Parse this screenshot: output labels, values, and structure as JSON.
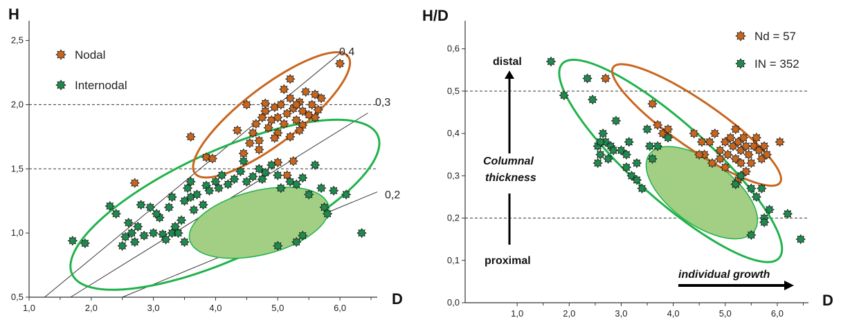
{
  "colors": {
    "nodal": "#c8661e",
    "internodal": "#1e8a4e",
    "ellipse_green": "#1fb24a",
    "ellipse_orange": "#c8661e",
    "fill_green": "#a3cf84"
  },
  "chart_data": [
    {
      "type": "scatter",
      "xlabel": "D",
      "ylabel": "H",
      "xlim": [
        1.0,
        6.6
      ],
      "ylim": [
        0.5,
        2.6
      ],
      "x_ticks": [
        "1,0",
        "2,0",
        "3,0",
        "4,0",
        "5,0",
        "6,0"
      ],
      "x_tick_values": [
        1,
        2,
        3,
        4,
        5,
        6
      ],
      "y_ticks": [
        "0,5",
        "1,0",
        "1,5",
        "2,0",
        "2,5"
      ],
      "y_tick_values": [
        0.5,
        1.0,
        1.5,
        2.0,
        2.5
      ],
      "dashed_lines": [
        1.5,
        2.0
      ],
      "legend": [
        {
          "name": "Nodal",
          "color": "#c8661e"
        },
        {
          "name": "Internodal",
          "color": "#1e8a4e"
        }
      ],
      "ratio_lines": [
        {
          "label": "0,4",
          "slope": 0.4
        },
        {
          "label": "0,3",
          "slope": 0.3
        },
        {
          "label": "0,2",
          "slope": 0.2
        }
      ],
      "series": [
        {
          "name": "Nodal",
          "points": [
            [
              2.7,
              1.39
            ],
            [
              3.6,
              1.75
            ],
            [
              3.85,
              1.59
            ],
            [
              3.95,
              1.58
            ],
            [
              4.35,
              1.8
            ],
            [
              4.45,
              1.62
            ],
            [
              4.55,
              1.7
            ],
            [
              4.6,
              1.78
            ],
            [
              4.65,
              1.85
            ],
            [
              4.7,
              1.72
            ],
            [
              4.75,
              1.9
            ],
            [
              4.8,
              1.95
            ],
            [
              4.85,
              1.82
            ],
            [
              4.9,
              1.88
            ],
            [
              4.95,
              1.98
            ],
            [
              5.0,
              1.9
            ],
            [
              5.05,
              2.0
            ],
            [
              5.1,
              1.85
            ],
            [
              5.15,
              1.93
            ],
            [
              5.2,
              2.05
            ],
            [
              5.25,
              1.97
            ],
            [
              5.3,
              1.88
            ],
            [
              5.35,
              2.02
            ],
            [
              5.4,
              1.95
            ],
            [
              5.45,
              2.1
            ],
            [
              5.5,
              1.92
            ],
            [
              5.55,
              2.0
            ],
            [
              5.6,
              2.08
            ],
            [
              5.65,
              1.96
            ],
            [
              5.7,
              2.05
            ],
            [
              4.8,
              2.01
            ],
            [
              5.0,
              1.78
            ],
            [
              5.2,
              1.75
            ],
            [
              5.1,
              2.12
            ],
            [
              5.3,
              2.0
            ],
            [
              5.4,
              1.84
            ],
            [
              5.6,
              1.9
            ],
            [
              4.95,
              1.74
            ],
            [
              5.25,
              1.56
            ],
            [
              5.15,
              1.45
            ],
            [
              5.0,
              1.55
            ],
            [
              5.2,
              2.2
            ],
            [
              6.0,
              2.32
            ],
            [
              4.5,
              2.0
            ],
            [
              5.35,
              1.8
            ],
            [
              4.7,
              1.65
            ]
          ]
        },
        {
          "name": "Internodal",
          "points": [
            [
              1.7,
              0.94
            ],
            [
              1.9,
              0.92
            ],
            [
              2.3,
              1.21
            ],
            [
              2.4,
              1.15
            ],
            [
              2.5,
              0.9
            ],
            [
              2.55,
              0.97
            ],
            [
              2.6,
              1.08
            ],
            [
              2.65,
              1.0
            ],
            [
              2.7,
              0.93
            ],
            [
              2.75,
              1.05
            ],
            [
              2.8,
              1.22
            ],
            [
              2.85,
              0.98
            ],
            [
              3.0,
              1.0
            ],
            [
              3.1,
              1.12
            ],
            [
              3.15,
              0.99
            ],
            [
              3.2,
              0.95
            ],
            [
              3.3,
              1.0
            ],
            [
              3.35,
              1.05
            ],
            [
              3.4,
              1.0
            ],
            [
              3.45,
              1.1
            ],
            [
              3.5,
              1.25
            ],
            [
              3.55,
              1.35
            ],
            [
              3.6,
              1.28
            ],
            [
              3.65,
              1.18
            ],
            [
              3.7,
              1.3
            ],
            [
              3.8,
              1.22
            ],
            [
              3.85,
              1.37
            ],
            [
              3.9,
              1.33
            ],
            [
              4.0,
              1.4
            ],
            [
              4.05,
              1.35
            ],
            [
              4.1,
              1.45
            ],
            [
              4.2,
              1.38
            ],
            [
              4.3,
              1.42
            ],
            [
              4.4,
              1.48
            ],
            [
              4.45,
              1.56
            ],
            [
              4.5,
              1.4
            ],
            [
              4.6,
              1.44
            ],
            [
              4.7,
              1.5
            ],
            [
              4.75,
              1.42
            ],
            [
              4.8,
              1.47
            ],
            [
              4.9,
              1.53
            ],
            [
              5.0,
              1.45
            ],
            [
              5.05,
              1.35
            ],
            [
              5.2,
              1.4
            ],
            [
              5.3,
              1.38
            ],
            [
              5.4,
              1.43
            ],
            [
              5.5,
              1.3
            ],
            [
              5.6,
              1.53
            ],
            [
              5.7,
              1.35
            ],
            [
              5.75,
              1.2
            ],
            [
              5.8,
              1.15
            ],
            [
              5.9,
              1.33
            ],
            [
              6.1,
              1.3
            ],
            [
              5.0,
              0.9
            ],
            [
              5.3,
              0.93
            ],
            [
              5.4,
              0.98
            ],
            [
              6.35,
              1.0
            ],
            [
              3.5,
              0.93
            ],
            [
              3.25,
              1.2
            ],
            [
              3.6,
              1.4
            ],
            [
              3.3,
              1.28
            ],
            [
              2.95,
              1.2
            ],
            [
              3.05,
              1.15
            ]
          ]
        }
      ],
      "ellipses": [
        {
          "name": "internodal-outline",
          "cx": 4.15,
          "cy": 1.22,
          "rx": 2.7,
          "ry": 0.42,
          "angle_data_slope": 0.22,
          "style": "outline-green"
        },
        {
          "name": "internodal-core",
          "cx": 4.7,
          "cy": 1.08,
          "rx": 1.15,
          "ry": 0.25,
          "angle_data_slope": 0.12,
          "style": "filled-green"
        },
        {
          "name": "nodal-outline",
          "cx": 4.9,
          "cy": 1.92,
          "rx": 1.55,
          "ry": 0.22,
          "angle_data_slope": 0.37,
          "style": "outline-orange"
        }
      ]
    },
    {
      "type": "scatter",
      "xlabel": "D",
      "ylabel": "H/D",
      "xlim": [
        0.0,
        6.6
      ],
      "ylim": [
        0.0,
        0.65
      ],
      "x_ticks": [
        "1,0",
        "2,0",
        "3,0",
        "4,0",
        "5,0",
        "6,0"
      ],
      "x_tick_values": [
        1,
        2,
        3,
        4,
        5,
        6
      ],
      "y_ticks": [
        "0,0",
        "0,1",
        "0,2",
        "0,3",
        "0,4",
        "0,5",
        "0,6"
      ],
      "y_tick_values": [
        0.0,
        0.1,
        0.2,
        0.3,
        0.4,
        0.5,
        0.6
      ],
      "dashed_lines": [
        0.2,
        0.5
      ],
      "legend": [
        {
          "name": "Nd = 57",
          "color": "#c8661e"
        },
        {
          "name": "IN = 352",
          "color": "#1e8a4e"
        }
      ],
      "annotations": {
        "top": "distal",
        "middle_line1": "Columnal",
        "middle_line2": "thickness",
        "bottom": "proximal",
        "growth": "individual growth"
      },
      "series": [
        {
          "name": "Nd = 57",
          "points": [
            [
              2.7,
              0.53
            ],
            [
              3.6,
              0.47
            ],
            [
              3.7,
              0.42
            ],
            [
              3.8,
              0.4
            ],
            [
              3.9,
              0.41
            ],
            [
              4.4,
              0.4
            ],
            [
              4.6,
              0.35
            ],
            [
              4.7,
              0.38
            ],
            [
              4.8,
              0.4
            ],
            [
              4.9,
              0.36
            ],
            [
              5.0,
              0.38
            ],
            [
              5.05,
              0.35
            ],
            [
              5.1,
              0.39
            ],
            [
              5.15,
              0.37
            ],
            [
              5.2,
              0.41
            ],
            [
              5.25,
              0.38
            ],
            [
              5.3,
              0.36
            ],
            [
              5.35,
              0.39
            ],
            [
              5.4,
              0.37
            ],
            [
              5.45,
              0.35
            ],
            [
              5.5,
              0.33
            ],
            [
              5.55,
              0.37
            ],
            [
              5.6,
              0.39
            ],
            [
              5.65,
              0.36
            ],
            [
              5.7,
              0.34
            ],
            [
              5.75,
              0.37
            ],
            [
              5.8,
              0.35
            ],
            [
              4.5,
              0.35
            ],
            [
              4.55,
              0.38
            ],
            [
              5.0,
              0.32
            ],
            [
              5.2,
              0.34
            ],
            [
              5.3,
              0.33
            ],
            [
              5.4,
              0.31
            ],
            [
              5.25,
              0.29
            ],
            [
              5.2,
              0.28
            ],
            [
              6.05,
              0.38
            ],
            [
              4.75,
              0.33
            ],
            [
              4.9,
              0.34
            ]
          ]
        },
        {
          "name": "IN = 352",
          "points": [
            [
              1.65,
              0.57
            ],
            [
              1.9,
              0.49
            ],
            [
              2.35,
              0.53
            ],
            [
              2.45,
              0.48
            ],
            [
              2.55,
              0.37
            ],
            [
              2.6,
              0.35
            ],
            [
              2.65,
              0.4
            ],
            [
              2.7,
              0.38
            ],
            [
              2.75,
              0.34
            ],
            [
              2.8,
              0.37
            ],
            [
              2.85,
              0.36
            ],
            [
              2.9,
              0.43
            ],
            [
              3.0,
              0.36
            ],
            [
              3.1,
              0.32
            ],
            [
              3.15,
              0.38
            ],
            [
              3.2,
              0.3
            ],
            [
              3.3,
              0.29
            ],
            [
              3.4,
              0.27
            ],
            [
              3.5,
              0.41
            ],
            [
              3.55,
              0.37
            ],
            [
              3.6,
              0.34
            ],
            [
              3.7,
              0.37
            ],
            [
              3.9,
              0.39
            ],
            [
              5.2,
              0.28
            ],
            [
              5.3,
              0.3
            ],
            [
              5.5,
              0.27
            ],
            [
              5.6,
              0.25
            ],
            [
              5.7,
              0.27
            ],
            [
              5.75,
              0.2
            ],
            [
              5.85,
              0.22
            ],
            [
              6.2,
              0.21
            ],
            [
              6.45,
              0.15
            ],
            [
              5.5,
              0.16
            ],
            [
              5.75,
              0.19
            ],
            [
              2.6,
              0.38
            ],
            [
              2.55,
              0.33
            ],
            [
              3.1,
              0.35
            ],
            [
              3.3,
              0.33
            ]
          ]
        }
      ],
      "ellipses": [
        {
          "name": "in-outline",
          "cx": 3.95,
          "cy": 0.335,
          "rx": 2.8,
          "ry": 0.09,
          "angle_data_slope": -0.11,
          "style": "outline-green"
        },
        {
          "name": "in-core",
          "cx": 4.55,
          "cy": 0.26,
          "rx": 1.25,
          "ry": 0.075,
          "angle_data_slope": -0.09,
          "style": "filled-green"
        },
        {
          "name": "nd-outline",
          "cx": 4.45,
          "cy": 0.42,
          "rx": 1.95,
          "ry": 0.055,
          "angle_data_slope": -0.085,
          "style": "outline-orange"
        }
      ]
    }
  ]
}
